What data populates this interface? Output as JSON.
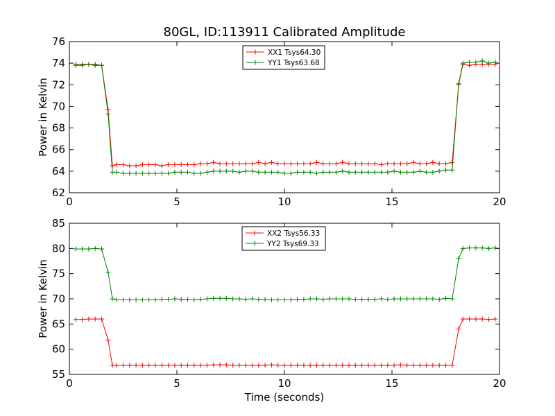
{
  "chart_data": [
    {
      "type": "line",
      "title": "80GL, ID:113911 Calibrated Amplitude",
      "xlabel": "",
      "ylabel": "Power in Kelvin",
      "xlim": [
        0,
        20
      ],
      "ylim": [
        62,
        76
      ],
      "xticks": [
        0,
        5,
        10,
        15,
        20
      ],
      "yticks": [
        62,
        64,
        66,
        68,
        70,
        72,
        74,
        76
      ],
      "grid": false,
      "legend_position": "top-center",
      "series": [
        {
          "name": "XX1 Tsys64.30",
          "color": "#ff0000",
          "x": [
            0.3,
            0.6,
            0.9,
            1.2,
            1.5,
            1.8,
            2.0,
            2.2,
            2.5,
            2.8,
            3.1,
            3.4,
            3.7,
            4.0,
            4.3,
            4.6,
            4.9,
            5.2,
            5.5,
            5.8,
            6.1,
            6.4,
            6.7,
            7.0,
            7.3,
            7.6,
            7.9,
            8.2,
            8.5,
            8.8,
            9.1,
            9.4,
            9.7,
            10.0,
            10.3,
            10.6,
            10.9,
            11.2,
            11.5,
            11.8,
            12.1,
            12.4,
            12.7,
            13.0,
            13.3,
            13.6,
            13.9,
            14.2,
            14.5,
            14.8,
            15.1,
            15.4,
            15.7,
            16.0,
            16.3,
            16.6,
            16.9,
            17.2,
            17.5,
            17.8,
            18.1,
            18.3,
            18.6,
            18.9,
            19.2,
            19.5,
            19.8
          ],
          "y": [
            73.8,
            73.8,
            73.9,
            73.8,
            73.8,
            69.7,
            64.5,
            64.6,
            64.6,
            64.5,
            64.5,
            64.6,
            64.6,
            64.6,
            64.5,
            64.6,
            64.6,
            64.6,
            64.6,
            64.6,
            64.7,
            64.7,
            64.8,
            64.7,
            64.7,
            64.7,
            64.7,
            64.7,
            64.7,
            64.8,
            64.7,
            64.8,
            64.7,
            64.7,
            64.7,
            64.7,
            64.7,
            64.7,
            64.8,
            64.7,
            64.7,
            64.7,
            64.8,
            64.7,
            64.7,
            64.7,
            64.7,
            64.7,
            64.6,
            64.7,
            64.7,
            64.7,
            64.7,
            64.8,
            64.7,
            64.7,
            64.8,
            64.7,
            64.7,
            64.8,
            72.0,
            73.9,
            73.8,
            73.9,
            73.9,
            73.9,
            73.9
          ]
        },
        {
          "name": "YY1 Tsys63.68",
          "color": "#008000",
          "x": [
            0.3,
            0.6,
            0.9,
            1.2,
            1.5,
            1.8,
            2.0,
            2.2,
            2.5,
            2.8,
            3.1,
            3.4,
            3.7,
            4.0,
            4.3,
            4.6,
            4.9,
            5.2,
            5.5,
            5.8,
            6.1,
            6.4,
            6.7,
            7.0,
            7.3,
            7.6,
            7.9,
            8.2,
            8.5,
            8.8,
            9.1,
            9.4,
            9.7,
            10.0,
            10.3,
            10.6,
            10.9,
            11.2,
            11.5,
            11.8,
            12.1,
            12.4,
            12.7,
            13.0,
            13.3,
            13.6,
            13.9,
            14.2,
            14.5,
            14.8,
            15.1,
            15.4,
            15.7,
            16.0,
            16.3,
            16.6,
            16.9,
            17.2,
            17.5,
            17.8,
            18.1,
            18.3,
            18.6,
            18.9,
            19.2,
            19.5,
            19.8
          ],
          "y": [
            73.9,
            73.9,
            73.9,
            73.9,
            73.8,
            69.3,
            63.9,
            63.9,
            63.8,
            63.8,
            63.8,
            63.8,
            63.8,
            63.8,
            63.8,
            63.8,
            63.9,
            63.9,
            63.9,
            63.8,
            63.8,
            63.9,
            64.0,
            64.0,
            64.0,
            64.0,
            63.9,
            64.0,
            64.0,
            63.9,
            63.9,
            63.9,
            63.9,
            63.8,
            63.8,
            63.9,
            63.9,
            63.9,
            63.8,
            63.9,
            63.9,
            63.9,
            64.0,
            63.9,
            63.9,
            63.9,
            63.9,
            63.9,
            63.9,
            63.9,
            64.0,
            63.9,
            63.9,
            63.9,
            64.0,
            63.9,
            63.9,
            64.0,
            64.1,
            64.1,
            72.1,
            74.0,
            74.1,
            74.1,
            74.2,
            74.0,
            74.1
          ]
        }
      ]
    },
    {
      "type": "line",
      "title": "",
      "xlabel": "Time (seconds)",
      "ylabel": "Power in Kelvin",
      "xlim": [
        0,
        20
      ],
      "ylim": [
        55,
        85
      ],
      "xticks": [
        0,
        5,
        10,
        15,
        20
      ],
      "yticks": [
        55,
        60,
        65,
        70,
        75,
        80,
        85
      ],
      "grid": false,
      "legend_position": "top-center",
      "series": [
        {
          "name": "XX2 Tsys56.33",
          "color": "#ff0000",
          "x": [
            0.3,
            0.6,
            0.9,
            1.2,
            1.5,
            1.8,
            2.0,
            2.2,
            2.5,
            2.8,
            3.1,
            3.4,
            3.7,
            4.0,
            4.3,
            4.6,
            4.9,
            5.2,
            5.5,
            5.8,
            6.1,
            6.4,
            6.7,
            7.0,
            7.3,
            7.6,
            7.9,
            8.2,
            8.5,
            8.8,
            9.1,
            9.4,
            9.7,
            10.0,
            10.3,
            10.6,
            10.9,
            11.2,
            11.5,
            11.8,
            12.1,
            12.4,
            12.7,
            13.0,
            13.3,
            13.6,
            13.9,
            14.2,
            14.5,
            14.8,
            15.1,
            15.4,
            15.7,
            16.0,
            16.3,
            16.6,
            16.9,
            17.2,
            17.5,
            17.8,
            18.1,
            18.3,
            18.6,
            18.9,
            19.2,
            19.5,
            19.8
          ],
          "y": [
            65.9,
            65.9,
            66.0,
            66.0,
            66.0,
            61.8,
            56.8,
            56.8,
            56.8,
            56.8,
            56.8,
            56.8,
            56.8,
            56.8,
            56.8,
            56.8,
            56.8,
            56.8,
            56.8,
            56.8,
            56.8,
            56.8,
            56.9,
            56.9,
            56.9,
            56.8,
            56.8,
            56.8,
            56.8,
            56.8,
            56.8,
            56.9,
            56.8,
            56.8,
            56.8,
            56.8,
            56.8,
            56.8,
            56.8,
            56.8,
            56.8,
            56.8,
            56.8,
            56.8,
            56.8,
            56.8,
            56.8,
            56.8,
            56.8,
            56.8,
            56.8,
            56.9,
            56.8,
            56.8,
            56.8,
            56.8,
            56.8,
            56.8,
            56.8,
            56.8,
            64.0,
            66.0,
            66.0,
            66.0,
            66.0,
            65.9,
            66.0
          ]
        },
        {
          "name": "YY2 Tsys69.33",
          "color": "#008000",
          "x": [
            0.3,
            0.6,
            0.9,
            1.2,
            1.5,
            1.8,
            2.0,
            2.2,
            2.5,
            2.8,
            3.1,
            3.4,
            3.7,
            4.0,
            4.3,
            4.6,
            4.9,
            5.2,
            5.5,
            5.8,
            6.1,
            6.4,
            6.7,
            7.0,
            7.3,
            7.6,
            7.9,
            8.2,
            8.5,
            8.8,
            9.1,
            9.4,
            9.7,
            10.0,
            10.3,
            10.6,
            10.9,
            11.2,
            11.5,
            11.8,
            12.1,
            12.4,
            12.7,
            13.0,
            13.3,
            13.6,
            13.9,
            14.2,
            14.5,
            14.8,
            15.1,
            15.4,
            15.7,
            16.0,
            16.3,
            16.6,
            16.9,
            17.2,
            17.5,
            17.8,
            18.1,
            18.3,
            18.6,
            18.9,
            19.2,
            19.5,
            19.8
          ],
          "y": [
            79.9,
            79.9,
            79.9,
            80.0,
            79.9,
            75.3,
            70.0,
            69.8,
            69.8,
            69.8,
            69.8,
            69.8,
            69.8,
            69.8,
            69.9,
            69.9,
            70.0,
            69.9,
            69.9,
            69.8,
            69.9,
            70.0,
            70.1,
            70.1,
            70.1,
            70.0,
            70.0,
            69.9,
            70.0,
            69.9,
            69.9,
            69.8,
            69.8,
            69.8,
            69.8,
            69.9,
            69.9,
            70.0,
            70.0,
            69.9,
            70.0,
            70.0,
            70.0,
            70.0,
            69.9,
            69.9,
            69.9,
            69.9,
            70.0,
            69.9,
            70.0,
            70.0,
            70.0,
            70.0,
            70.0,
            70.0,
            70.0,
            69.9,
            70.1,
            70.0,
            78.0,
            80.0,
            80.1,
            80.1,
            80.1,
            80.0,
            80.1
          ]
        }
      ]
    }
  ]
}
